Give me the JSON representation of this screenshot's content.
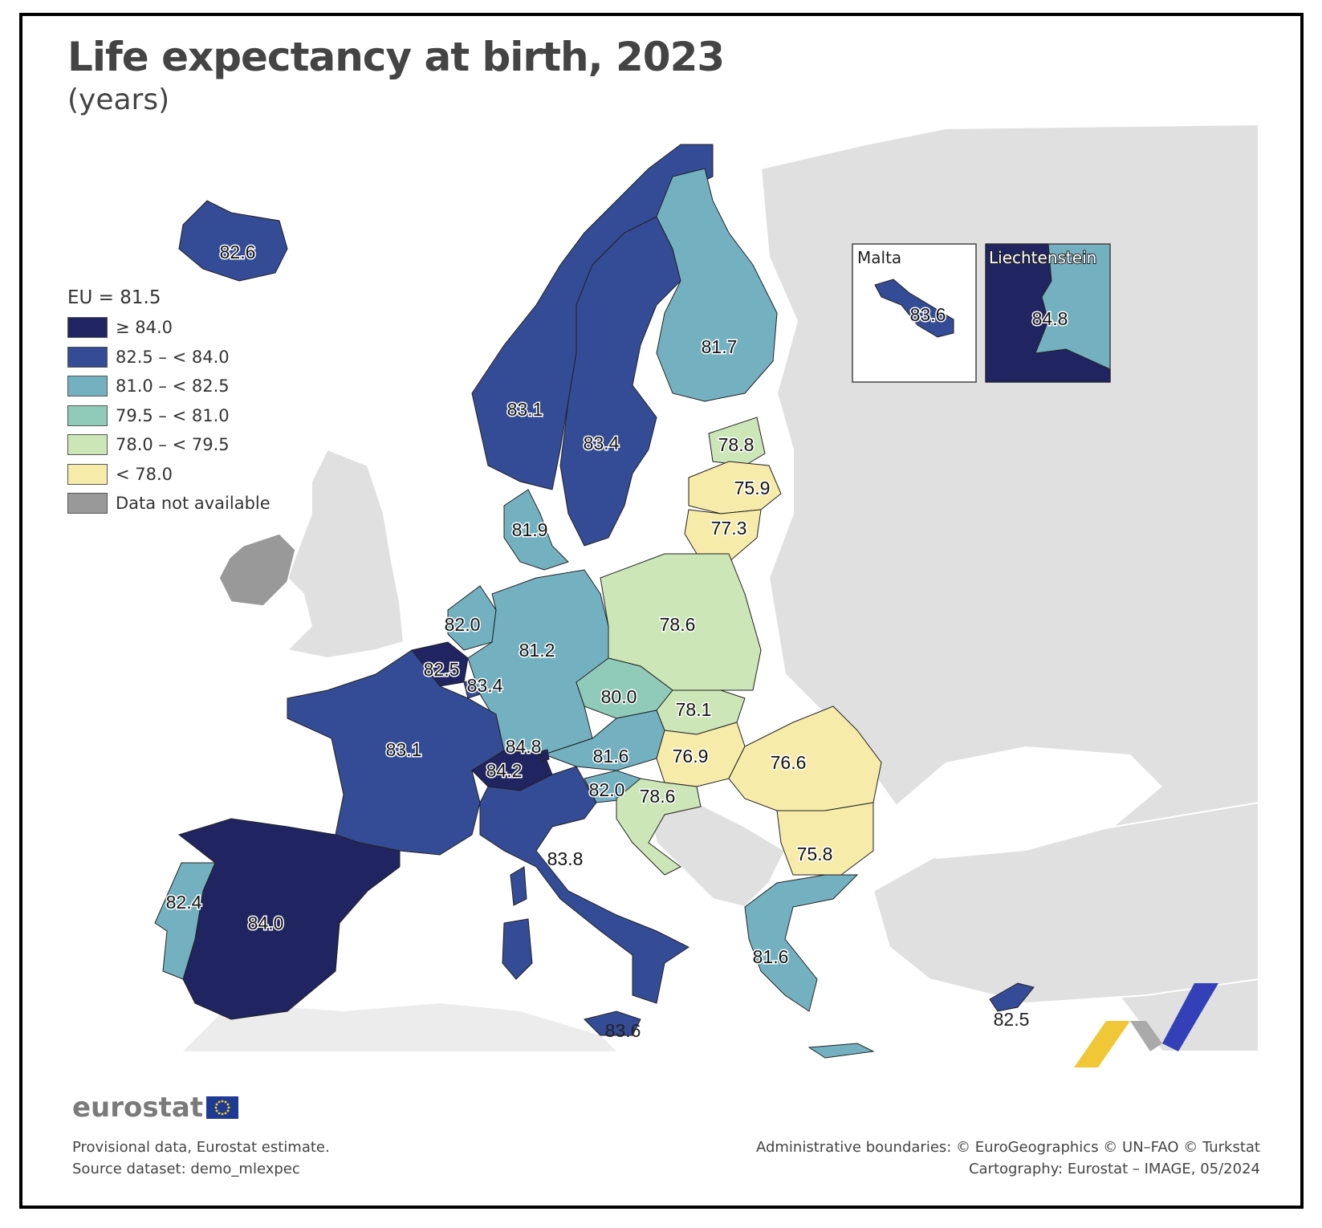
{
  "title": "Life expectancy at birth, 2023",
  "subtitle": "(years)",
  "legend": {
    "title": "EU = 81.5",
    "items": [
      {
        "label": "≥ 84.0",
        "color": "#202461"
      },
      {
        "label": "82.5 – < 84.0",
        "color": "#344b95"
      },
      {
        "label": "81.0 – < 82.5",
        "color": "#73b1c1"
      },
      {
        "label": "79.5 – < 81.0",
        "color": "#8fcbb8"
      },
      {
        "label": "78.0 – < 79.5",
        "color": "#cce6b8"
      },
      {
        "label": "< 78.0",
        "color": "#f7ebaa"
      },
      {
        "label": "Data not available",
        "color": "#999999"
      }
    ]
  },
  "insets": {
    "malta": {
      "title": "Malta",
      "value": "83.6"
    },
    "liechtenstein": {
      "title": "Liechtenstein",
      "value": "84.8"
    }
  },
  "map_values": {
    "iceland": "82.6",
    "norway": "83.1",
    "sweden": "83.4",
    "finland": "81.7",
    "estonia": "78.8",
    "latvia": "75.9",
    "lithuania": "77.3",
    "denmark": "81.9",
    "netherlands": "82.0",
    "belgium": "82.5",
    "luxembourg": "83.4",
    "germany": "81.2",
    "poland": "78.6",
    "czechia": "80.0",
    "slovakia": "78.1",
    "france": "83.1",
    "liechtenstein_small": "84.8",
    "switzerland": "84.2",
    "austria": "81.6",
    "hungary": "76.9",
    "romania": "76.6",
    "slovenia": "82.0",
    "croatia": "78.6",
    "bulgaria": "75.8",
    "italy": "83.8",
    "portugal": "82.4",
    "spain": "84.0",
    "greece": "81.6",
    "malta": "83.6",
    "cyprus": "82.5"
  },
  "logo": "eurostat",
  "footer": {
    "left_line1": "Provisional data, Eurostat estimate.",
    "left_line2": "Source dataset: demo_mlexpec",
    "right_line1": "Administrative boundaries: © EuroGeographics © UN–FAO © Turkstat",
    "right_line2": "Cartography: Eurostat – IMAGE, 05/2024"
  }
}
